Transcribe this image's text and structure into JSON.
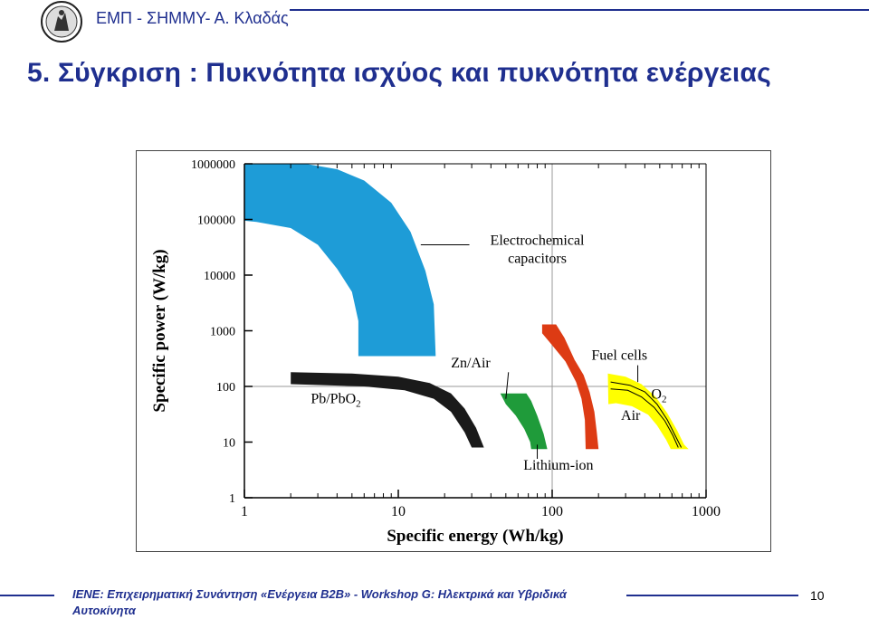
{
  "header": {
    "text": "ΕΜΠ - ΣΗΜΜΥ- Α. Κλαδάς"
  },
  "slide": {
    "title": "5. Σύγκριση : Πυκνότητα ισχύος και πυκνότητα ενέργειας"
  },
  "footer": {
    "text": "ΙΕΝΕ: Επιχειρηματική Συνάντηση «Ενέργεια Β2Β» - Workshop G: Ηλεκτρικά και Υβριδικά Αυτοκίνητα",
    "page_number": "10"
  },
  "chart_data": {
    "type": "area",
    "xscale": "log",
    "yscale": "log",
    "xlim": [
      1,
      1000
    ],
    "ylim": [
      1,
      1000000
    ],
    "xlabel": "Specific energy (Wh/kg)",
    "ylabel": "Specific power (W/kg)",
    "x_ticks": [
      "1",
      "10",
      "100",
      "1000"
    ],
    "y_ticks": [
      "1",
      "10",
      "100",
      "1000",
      "10000",
      "100000",
      "1000000"
    ],
    "grid": "major lines at x=100 and y=100",
    "regions": [
      {
        "name": "Electrochemical capacitors",
        "color": "#1e9cd7",
        "points": [
          [
            1,
            1000000
          ],
          [
            2.5,
            1000000
          ],
          [
            4,
            800000
          ],
          [
            6,
            500000
          ],
          [
            9,
            200000
          ],
          [
            12,
            60000
          ],
          [
            15,
            12000
          ],
          [
            17,
            3000
          ],
          [
            17.5,
            350
          ],
          [
            5.5,
            350
          ],
          [
            5.5,
            1500
          ],
          [
            5,
            5000
          ],
          [
            4,
            13000
          ],
          [
            3,
            35000
          ],
          [
            2,
            70000
          ],
          [
            1.2,
            90000
          ],
          [
            1,
            95000
          ]
        ]
      },
      {
        "name": "Pb/PbO2",
        "color": "#1a1a1a",
        "points": [
          [
            2,
            180
          ],
          [
            5,
            170
          ],
          [
            10,
            150
          ],
          [
            16,
            115
          ],
          [
            22,
            75
          ],
          [
            27,
            40
          ],
          [
            32,
            18
          ],
          [
            36,
            8
          ],
          [
            30,
            8
          ],
          [
            27,
            15
          ],
          [
            22,
            35
          ],
          [
            17,
            60
          ],
          [
            11,
            85
          ],
          [
            6,
            100
          ],
          [
            2,
            110
          ]
        ]
      },
      {
        "name": "Zn/Air",
        "color": "#1f9b3a",
        "points": [
          [
            46,
            75
          ],
          [
            68,
            75
          ],
          [
            73,
            55
          ],
          [
            80,
            30
          ],
          [
            88,
            14
          ],
          [
            93,
            7.5
          ],
          [
            73,
            7.5
          ],
          [
            72,
            10
          ],
          [
            66,
            17
          ],
          [
            58,
            30
          ],
          [
            50,
            48
          ]
        ]
      },
      {
        "name": "Lithium-ion",
        "color": "#dd3b14",
        "points": [
          [
            86,
            1300
          ],
          [
            106,
            1300
          ],
          [
            120,
            750
          ],
          [
            140,
            300
          ],
          [
            160,
            160
          ],
          [
            175,
            80
          ],
          [
            188,
            35
          ],
          [
            195,
            15
          ],
          [
            200,
            7.5
          ],
          [
            165,
            7.5
          ],
          [
            163,
            25
          ],
          [
            155,
            60
          ],
          [
            143,
            120
          ],
          [
            122,
            280
          ],
          [
            100,
            550
          ],
          [
            86,
            900
          ]
        ]
      },
      {
        "name": "Fuel cells",
        "color": "#ffff00",
        "points": [
          [
            230,
            170
          ],
          [
            300,
            150
          ],
          [
            380,
            110
          ],
          [
            470,
            65
          ],
          [
            560,
            33
          ],
          [
            650,
            16
          ],
          [
            720,
            9
          ],
          [
            770,
            7.5
          ],
          [
            590,
            7.5
          ],
          [
            550,
            11
          ],
          [
            480,
            20
          ],
          [
            420,
            31
          ],
          [
            330,
            44
          ],
          [
            260,
            50
          ],
          [
            232,
            48
          ]
        ]
      }
    ],
    "labels": [
      {
        "text": "Electrochemical capacitors",
        "target": "Electrochemical capacitors"
      },
      {
        "text": "Pb/PbO2",
        "target": "Pb/PbO2"
      },
      {
        "text": "Zn/Air",
        "target": "Zn/Air"
      },
      {
        "text": "Lithium-ion",
        "target": "Lithium-ion"
      },
      {
        "text": "Fuel cells",
        "target": "Fuel cells"
      },
      {
        "text": "O2",
        "target": "Fuel cells"
      },
      {
        "text": "Air",
        "target": "Fuel cells"
      }
    ]
  }
}
